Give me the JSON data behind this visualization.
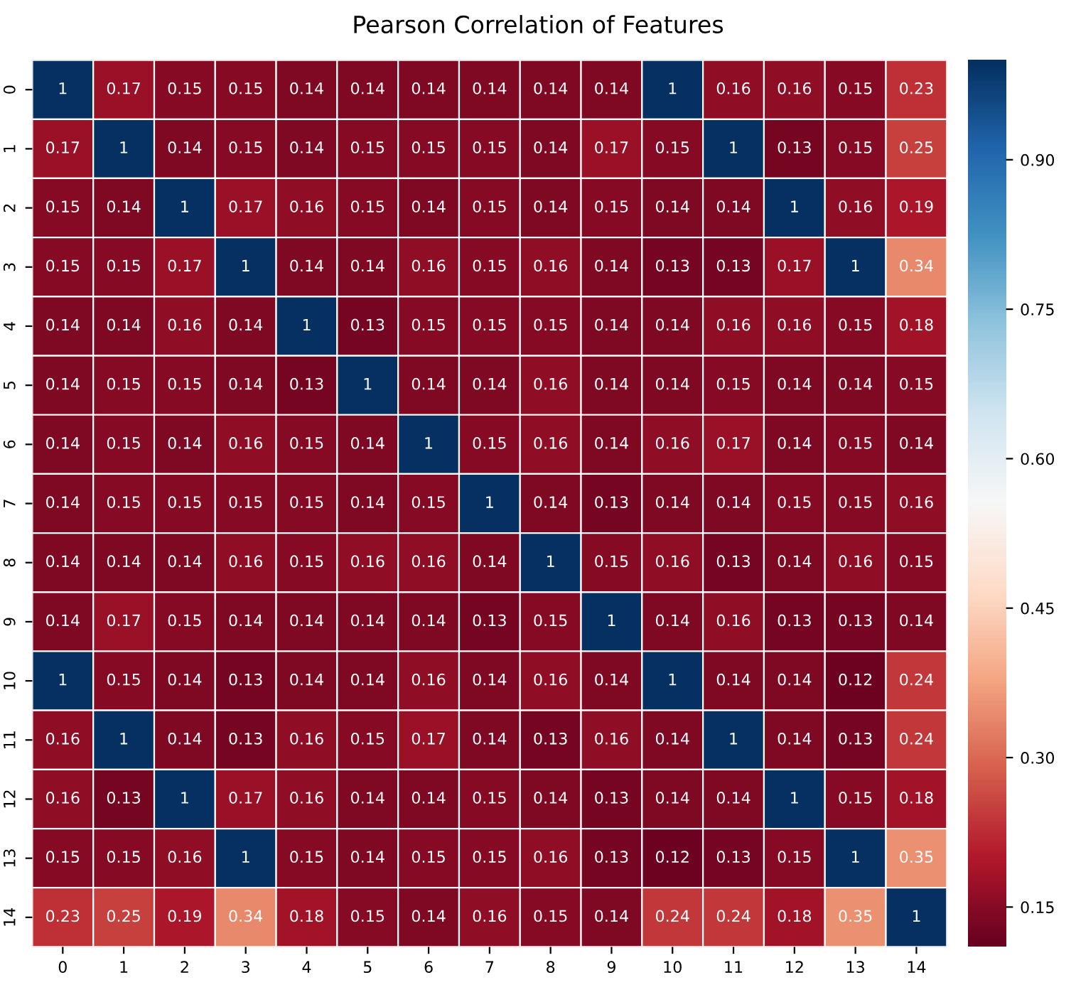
{
  "chart_data": {
    "type": "heatmap",
    "title": "Pearson Correlation of Features",
    "categories": [
      "0",
      "1",
      "2",
      "3",
      "4",
      "5",
      "6",
      "7",
      "8",
      "9",
      "10",
      "11",
      "12",
      "13",
      "14"
    ],
    "y_categories": [
      "0",
      "1",
      "2",
      "3",
      "4",
      "5",
      "6",
      "7",
      "8",
      "9",
      "10",
      "11",
      "12",
      "13",
      "14"
    ],
    "cells": [
      [
        1,
        0.17,
        0.15,
        0.15,
        0.14,
        0.14,
        0.14,
        0.14,
        0.14,
        0.14,
        1,
        0.16,
        0.16,
        0.15,
        0.23
      ],
      [
        0.17,
        1,
        0.14,
        0.15,
        0.14,
        0.15,
        0.15,
        0.15,
        0.14,
        0.17,
        0.15,
        1,
        0.13,
        0.15,
        0.25
      ],
      [
        0.15,
        0.14,
        1,
        0.17,
        0.16,
        0.15,
        0.14,
        0.15,
        0.14,
        0.15,
        0.14,
        0.14,
        1,
        0.16,
        0.19
      ],
      [
        0.15,
        0.15,
        0.17,
        1,
        0.14,
        0.14,
        0.16,
        0.15,
        0.16,
        0.14,
        0.13,
        0.13,
        0.17,
        1,
        0.34
      ],
      [
        0.14,
        0.14,
        0.16,
        0.14,
        1,
        0.13,
        0.15,
        0.15,
        0.15,
        0.14,
        0.14,
        0.16,
        0.16,
        0.15,
        0.18
      ],
      [
        0.14,
        0.15,
        0.15,
        0.14,
        0.13,
        1,
        0.14,
        0.14,
        0.16,
        0.14,
        0.14,
        0.15,
        0.14,
        0.14,
        0.15
      ],
      [
        0.14,
        0.15,
        0.14,
        0.16,
        0.15,
        0.14,
        1,
        0.15,
        0.16,
        0.14,
        0.16,
        0.17,
        0.14,
        0.15,
        0.14
      ],
      [
        0.14,
        0.15,
        0.15,
        0.15,
        0.15,
        0.14,
        0.15,
        1,
        0.14,
        0.13,
        0.14,
        0.14,
        0.15,
        0.15,
        0.16
      ],
      [
        0.14,
        0.14,
        0.14,
        0.16,
        0.15,
        0.16,
        0.16,
        0.14,
        1,
        0.15,
        0.16,
        0.13,
        0.14,
        0.16,
        0.15
      ],
      [
        0.14,
        0.17,
        0.15,
        0.14,
        0.14,
        0.14,
        0.14,
        0.13,
        0.15,
        1,
        0.14,
        0.16,
        0.13,
        0.13,
        0.14
      ],
      [
        1,
        0.15,
        0.14,
        0.13,
        0.14,
        0.14,
        0.16,
        0.14,
        0.16,
        0.14,
        1,
        0.14,
        0.14,
        0.12,
        0.24
      ],
      [
        0.16,
        1,
        0.14,
        0.13,
        0.16,
        0.15,
        0.17,
        0.14,
        0.13,
        0.16,
        0.14,
        1,
        0.14,
        0.13,
        0.24
      ],
      [
        0.16,
        0.13,
        1,
        0.17,
        0.16,
        0.14,
        0.14,
        0.15,
        0.14,
        0.13,
        0.14,
        0.14,
        1,
        0.15,
        0.18
      ],
      [
        0.15,
        0.15,
        0.16,
        1,
        0.15,
        0.14,
        0.15,
        0.15,
        0.16,
        0.13,
        0.12,
        0.13,
        0.15,
        1,
        0.35
      ],
      [
        0.23,
        0.25,
        0.19,
        0.34,
        0.18,
        0.15,
        0.14,
        0.16,
        0.15,
        0.14,
        0.24,
        0.24,
        0.18,
        0.35,
        1
      ]
    ],
    "clim": [
      0.11,
      1.0
    ],
    "cticks": [
      {
        "value": 0.15,
        "label": "0.15"
      },
      {
        "value": 0.3,
        "label": "0.30"
      },
      {
        "value": 0.45,
        "label": "0.45"
      },
      {
        "value": 0.6,
        "label": "0.60"
      },
      {
        "value": 0.75,
        "label": "0.75"
      },
      {
        "value": 0.9,
        "label": "0.90"
      }
    ],
    "data_labels": true
  }
}
